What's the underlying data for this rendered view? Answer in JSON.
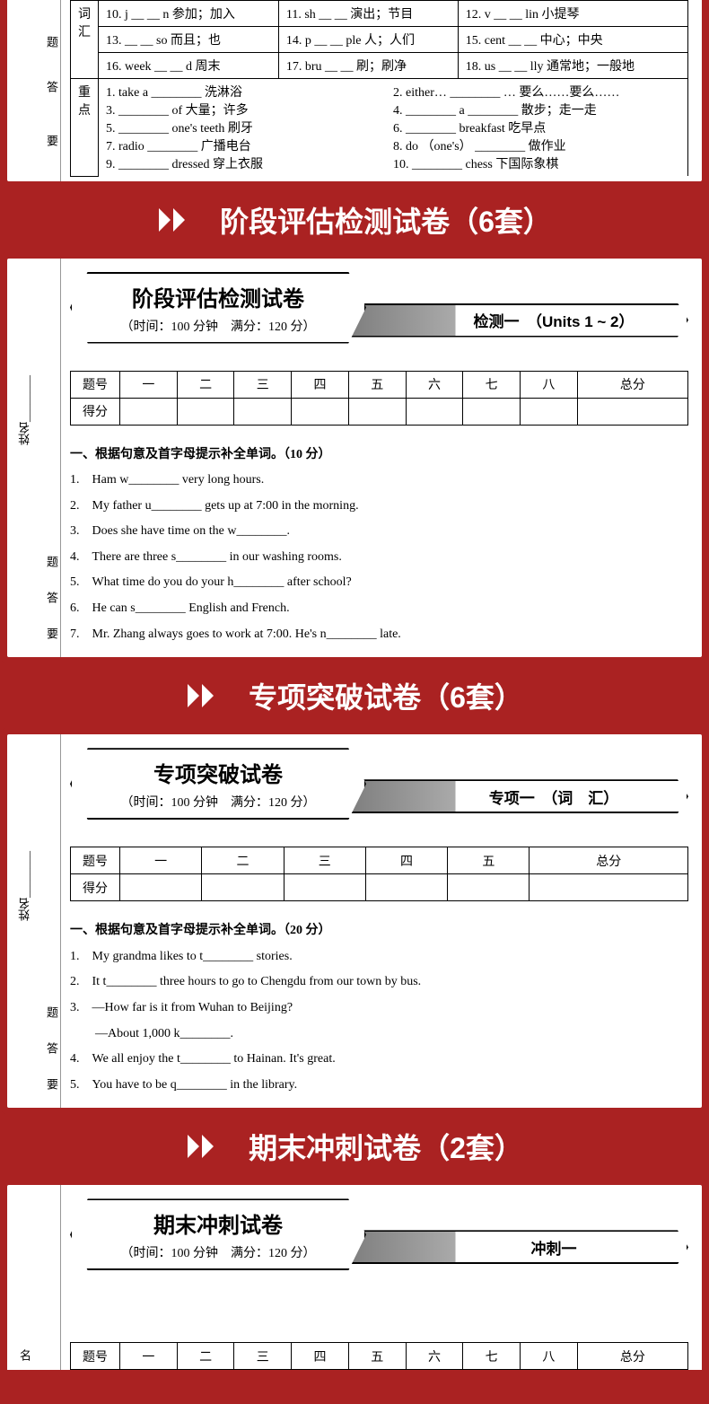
{
  "vocab_section": {
    "side_label": "词汇",
    "border_labels": [
      "题",
      "答",
      "要"
    ],
    "rows_top": [
      [
        "10. j __ __ n 参加；加入",
        "11. sh __ __ 演出；节目",
        "12. v __ __ lin 小提琴"
      ],
      [
        "13. __ __ so 而且；也",
        "14. p __ __ ple 人；人们",
        "15. cent __ __ 中心；中央"
      ],
      [
        "16. week __ __ d 周末",
        "17. bru __ __ 刷；刷净",
        "18. us __ __ lly 通常地；一般地"
      ]
    ],
    "phrases_left": [
      "1. take a ________ 洗淋浴",
      "3. ________ of 大量；许多",
      "5. ________ one's teeth 刷牙",
      "7. radio ________ 广播电台",
      "9. ________ dressed 穿上衣服"
    ],
    "phrases_right": [
      "2. either… ________ … 要么……要么……",
      "4. ________ a ________ 散步；走一走",
      "6. ________ breakfast 吃早点",
      "8. do （one's） ________ 做作业",
      "10. ________ chess 下国际象棋"
    ],
    "bottom_side": "重点"
  },
  "banners": [
    "阶段评估检测试卷（6套）",
    "专项突破试卷（6套）",
    "期末冲刺试卷（2套）"
  ],
  "paper1": {
    "title": "阶段评估检测试卷",
    "time": "（时间：100 分钟　满分：120 分）",
    "subtitle": "检测一　（Units 1 ~ 2）",
    "score_head": [
      "题号",
      "一",
      "二",
      "三",
      "四",
      "五",
      "六",
      "七",
      "八",
      "总分"
    ],
    "score_row2": "得分",
    "sec_title": "一、根据句意及首字母提示补全单词。（10 分）",
    "questions": [
      "1.　Ham w________ very long hours.",
      "2.　My father u________ gets up at 7:00 in the morning.",
      "3.　Does she have time on the w________.",
      "4.　There are three s________ in our washing rooms.",
      "5.　What time do you do your h________ after school?",
      "6.　He can s________ English and French.",
      "7.　Mr. Zhang always goes to work at 7:00. He's n________ late."
    ],
    "side_name": "姓名________",
    "side_labels": [
      "题",
      "答",
      "要"
    ]
  },
  "paper2": {
    "title": "专项突破试卷",
    "time": "（时间：100 分钟　满分：120 分）",
    "subtitle": "专项一　（词　汇）",
    "score_head": [
      "题号",
      "一",
      "二",
      "三",
      "四",
      "五",
      "总分"
    ],
    "score_row2": "得分",
    "sec_title": "一、根据句意及首字母提示补全单词。（20 分）",
    "questions": [
      "1.　My grandma likes to t________ stories.",
      "2.　It t________ three hours to go to Chengdu from our town by bus.",
      "3.　—How far is it from Wuhan to Beijing?",
      "　　—About 1,000 k________.",
      "4.　We all enjoy the t________ to Hainan. It's great.",
      "5.　You have to be q________ in the library."
    ],
    "side_name": "姓名________",
    "side_labels": [
      "题",
      "答",
      "要"
    ]
  },
  "paper3": {
    "title": "期末冲刺试卷",
    "time": "（时间：100 分钟　满分：120 分）",
    "subtitle": "冲刺一",
    "score_head": [
      "题号",
      "一",
      "二",
      "三",
      "四",
      "五",
      "六",
      "七",
      "八",
      "总分"
    ],
    "side_name": "名"
  },
  "colors": {
    "banner_bg": "#aa2222",
    "page_bg": "#ffffff"
  }
}
